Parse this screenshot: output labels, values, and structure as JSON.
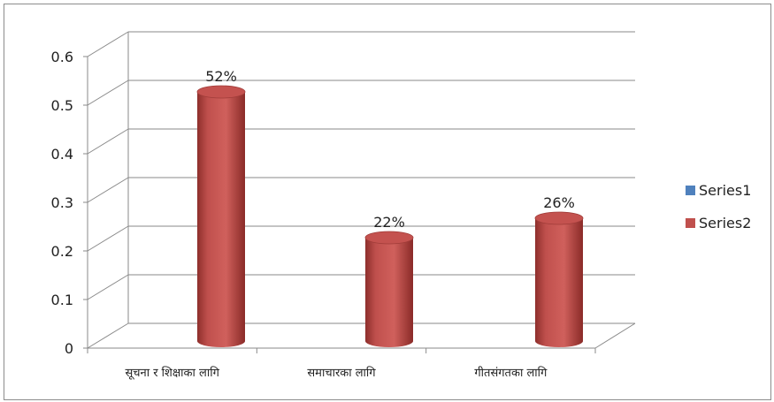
{
  "chart_data": {
    "type": "bar",
    "style": "3d-cylinder",
    "categories": [
      "सूचना र शिक्षाका लागि",
      "समाचारका लागि",
      "गीतसंगतका लागि"
    ],
    "series": [
      {
        "name": "Series1",
        "values": [
          0,
          0,
          0
        ],
        "color": "#4f81bd"
      },
      {
        "name": "Series2",
        "values": [
          0.52,
          0.22,
          0.26
        ],
        "color": "#c0504d"
      }
    ],
    "data_labels": [
      "52%",
      "22%",
      "26%"
    ],
    "yticks": [
      "0",
      "0.1",
      "0.2",
      "0.3",
      "0.4",
      "0.5",
      "0.6"
    ],
    "ylim": [
      0,
      0.6
    ],
    "grid": true,
    "legend": "right"
  }
}
